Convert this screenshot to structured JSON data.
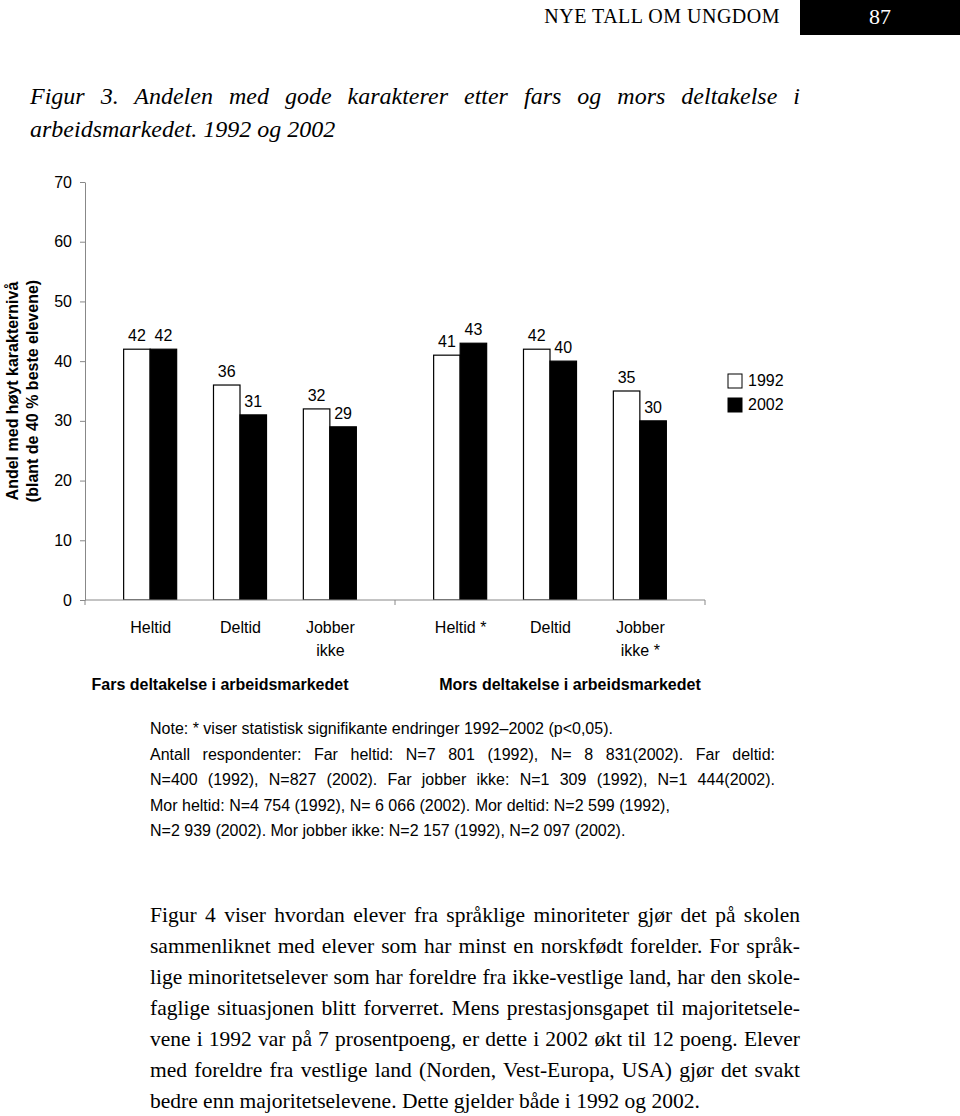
{
  "header": {
    "title": "NYE TALL OM UNGDOM",
    "page": "87"
  },
  "caption": [
    "Figur 3. Andelen med gode karakterer etter fars og mors deltakelse i",
    "arbeidsmarkedet. 1992 og 2002"
  ],
  "chart_data": {
    "type": "bar",
    "categories": [
      "Heltid",
      "Deltid",
      "Jobber ikke",
      "Heltid *",
      "Deltid",
      "Jobber ikke *"
    ],
    "group_labels": [
      "Fars deltakelse i arbeidsmarkedet",
      "Mors deltakelse i arbeidsmarkedet"
    ],
    "y_label": [
      "Andel med høyt karakternivå",
      "(blant de 40 % beste elevene)"
    ],
    "series": [
      {
        "name": "1992",
        "color": "#ffffff",
        "values": [
          42,
          36,
          32,
          41,
          42,
          35
        ]
      },
      {
        "name": "2002",
        "color": "#000000",
        "values": [
          42,
          31,
          29,
          43,
          40,
          30
        ]
      }
    ],
    "ylim": [
      0,
      70
    ],
    "yticks": [
      0,
      10,
      20,
      30,
      40,
      50,
      60,
      70
    ],
    "data_labels": true,
    "legend": "right",
    "grid": false
  },
  "note": [
    "Note: * viser statistisk signifikante endringer 1992–2002 (p<0,05).",
    "Antall respondenter: Far heltid: N=7 801 (1992), N= 8 831(2002). Far deltid:",
    "N=400 (1992), N=827 (2002). Far jobber ikke: N=1 309 (1992), N=1 444(2002).",
    "Mor heltid: N=4 754 (1992), N= 6 066 (2002). Mor deltid: N=2 599 (1992),",
    "N=2 939 (2002). Mor jobber ikke: N=2 157 (1992), N=2 097 (2002)."
  ],
  "body": [
    "Figur 4 viser hvordan elever fra språklige minoriteter gjør det på skolen",
    "sammenliknet med elever som har minst en norskfødt forelder. For språk-",
    "lige minoritetselever som har foreldre fra ikke-vestlige land, har den skole-",
    "faglige situasjonen blitt forverret. Mens prestasjonsgapet til majoritetsele-",
    "vene i 1992 var på 7 prosentpoeng, er dette i 2002 økt til 12 poeng. Elever",
    "med foreldre fra vestlige land (Norden, Vest-Europa, USA) gjør det svakt",
    "bedre enn majoritetselevene. Dette gjelder både i 1992 og 2002."
  ]
}
